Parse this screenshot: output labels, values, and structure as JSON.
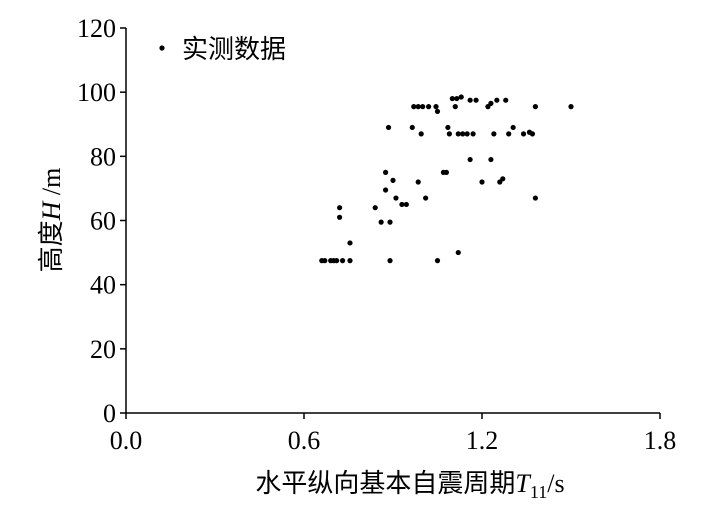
{
  "chart_data": {
    "type": "scatter",
    "series": [
      {
        "name": "实测数据",
        "color": "#000000",
        "x": [
          0.66,
          0.67,
          0.69,
          0.7,
          0.71,
          0.73,
          0.755,
          0.72,
          0.72,
          0.755,
          0.84,
          0.86,
          0.875,
          0.875,
          0.885,
          0.89,
          0.9,
          0.89,
          0.91,
          0.93,
          0.945,
          0.965,
          0.97,
          0.985,
          1.0,
          1.02,
          1.045,
          0.985,
          0.995,
          1.01,
          1.05,
          1.05,
          1.07,
          1.08,
          1.085,
          1.09,
          1.1,
          1.115,
          1.13,
          1.11,
          1.12,
          1.12,
          1.135,
          1.15,
          1.16,
          1.16,
          1.17,
          1.18,
          1.2,
          1.22,
          1.23,
          1.23,
          1.24,
          1.25,
          1.26,
          1.27,
          1.28,
          1.29,
          1.305,
          1.34,
          1.36,
          1.37,
          1.38,
          1.38,
          1.5
        ],
        "values": [
          47.5,
          47.5,
          47.5,
          47.5,
          47.5,
          47.5,
          47.5,
          64,
          61,
          53,
          64,
          59.5,
          75,
          69.5,
          89,
          59.5,
          72.5,
          47.5,
          67,
          65,
          65,
          89,
          95.5,
          95.5,
          95.5,
          95.5,
          95.5,
          72,
          87,
          67,
          94,
          47.5,
          75,
          75,
          89,
          87,
          98,
          98,
          98.5,
          95.5,
          50,
          87,
          87,
          87,
          97.5,
          79,
          87,
          97.5,
          72,
          95.5,
          96.5,
          79,
          87,
          97.5,
          72,
          73,
          97.5,
          87,
          89,
          87,
          87.5,
          87,
          95.5,
          67,
          95.5
        ]
      }
    ],
    "xlim": [
      0,
      1.8
    ],
    "ylim": [
      0,
      120
    ],
    "xticks": [
      {
        "value": 0,
        "label": "0.0"
      },
      0.6,
      1.2,
      1.8
    ],
    "yticks": [
      0,
      20,
      40,
      60,
      80,
      100,
      120
    ],
    "xlabel_parts": [
      "水平纵向基本自震周期",
      "T",
      "11",
      "/s"
    ],
    "ylabel_parts": [
      "高度",
      "H",
      " /m"
    ]
  }
}
